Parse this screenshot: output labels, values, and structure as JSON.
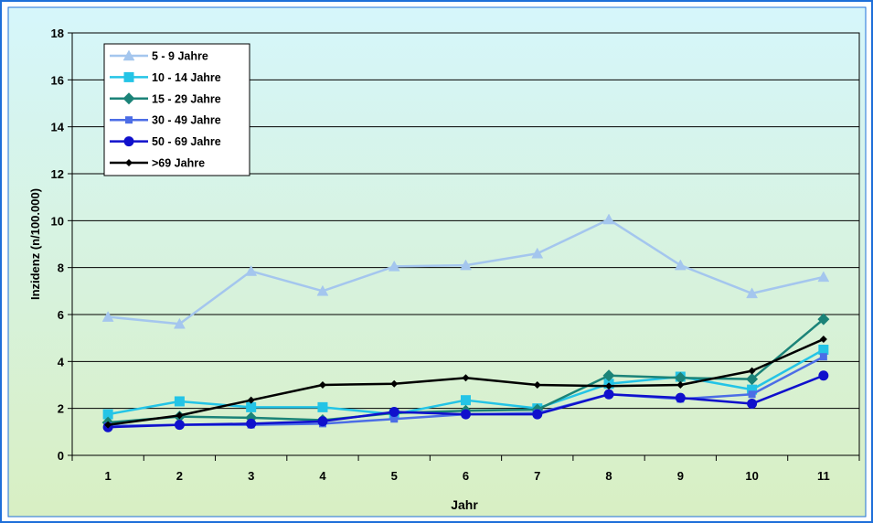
{
  "colors": {
    "frame": "#1E6FD9",
    "gradient_top": "#D6F6FB",
    "gradient_bottom": "#D8EFC3",
    "legend_bg": "#FFFFFF"
  },
  "chart_data": {
    "type": "line",
    "title": "",
    "xlabel": "Jahr",
    "ylabel": "Inzidenz (n/100.000)",
    "categories": [
      "1",
      "2",
      "3",
      "4",
      "5",
      "6",
      "7",
      "8",
      "9",
      "10",
      "11"
    ],
    "ylim": [
      0,
      18
    ],
    "yticks": [
      "0",
      "2",
      "4",
      "6",
      "8",
      "10",
      "12",
      "14",
      "16",
      "18"
    ],
    "grid": "horizontal",
    "legend_position": "top-left",
    "series": [
      {
        "name": "5 - 9 Jahre",
        "color": "#A4C6EE",
        "marker": "triangle",
        "values": [
          5.9,
          5.6,
          7.85,
          7.0,
          8.05,
          8.1,
          8.6,
          10.05,
          8.1,
          6.9,
          7.6
        ]
      },
      {
        "name": "10 - 14 Jahre",
        "color": "#24C4E6",
        "marker": "square",
        "values": [
          1.75,
          2.3,
          2.05,
          2.05,
          1.75,
          2.35,
          2.0,
          3.05,
          3.35,
          2.8,
          4.5
        ]
      },
      {
        "name": "15 - 29 Jahre",
        "color": "#1B8378",
        "marker": "diamond",
        "values": [
          1.4,
          1.65,
          1.6,
          1.5,
          1.8,
          1.9,
          1.95,
          3.4,
          3.3,
          3.25,
          5.8
        ]
      },
      {
        "name": "30 - 49 Jahre",
        "color": "#4C6DE6",
        "marker": "square-small",
        "values": [
          1.25,
          1.3,
          1.3,
          1.35,
          1.55,
          1.75,
          1.8,
          2.6,
          2.4,
          2.6,
          4.2
        ]
      },
      {
        "name": "50 - 69 Jahre",
        "color": "#1010CC",
        "marker": "circle",
        "values": [
          1.2,
          1.3,
          1.35,
          1.45,
          1.85,
          1.75,
          1.75,
          2.6,
          2.45,
          2.2,
          3.4
        ]
      },
      {
        "name": ">69 Jahre",
        "color": "#000000",
        "marker": "diamond-small",
        "values": [
          1.3,
          1.7,
          2.35,
          3.0,
          3.05,
          3.3,
          3.0,
          2.95,
          3.0,
          3.6,
          4.95
        ]
      }
    ]
  }
}
